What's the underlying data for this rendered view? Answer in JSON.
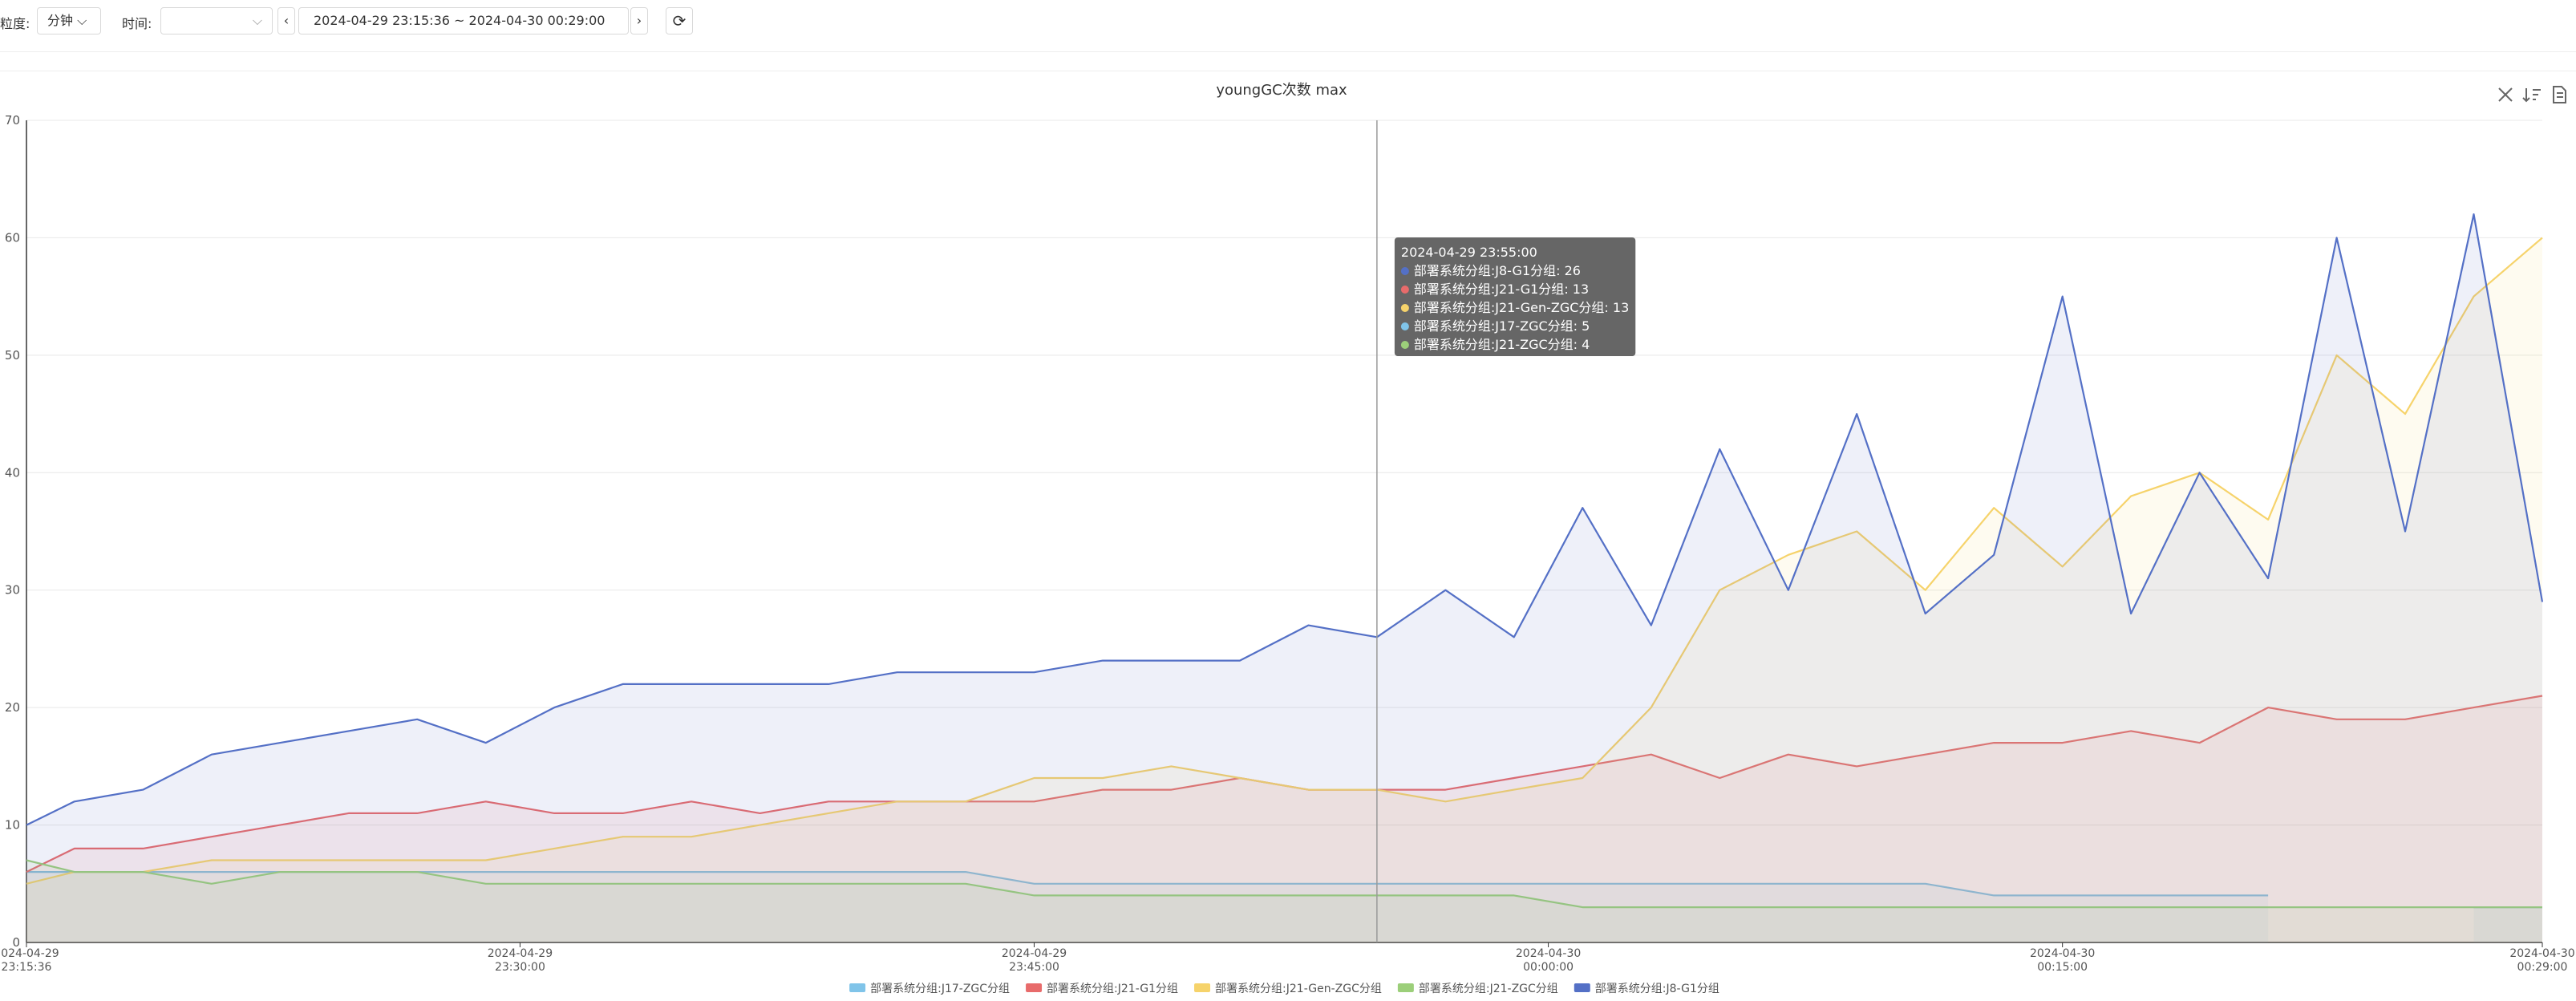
{
  "toolbar": {
    "granularity_label": "粒度:",
    "granularity": "分钟",
    "time_label": "时间:",
    "range": "2024-04-29 23:15:36 ~ 2024-04-30 00:29:00"
  },
  "chart_data": {
    "type": "line",
    "title": "youngGC次数 max",
    "x": [
      "2024-04-29 23:15:36",
      "2024-04-29 23:17:00",
      "2024-04-29 23:19:00",
      "2024-04-29 23:21:00",
      "2024-04-29 23:23:00",
      "2024-04-29 23:25:00",
      "2024-04-29 23:27:00",
      "2024-04-29 23:29:00",
      "2024-04-29 23:31:00",
      "2024-04-29 23:33:00",
      "2024-04-29 23:35:00",
      "2024-04-29 23:37:00",
      "2024-04-29 23:39:00",
      "2024-04-29 23:41:00",
      "2024-04-29 23:43:00",
      "2024-04-29 23:45:00",
      "2024-04-29 23:47:00",
      "2024-04-29 23:49:00",
      "2024-04-29 23:51:00",
      "2024-04-29 23:53:00",
      "2024-04-29 23:55:00",
      "2024-04-29 23:57:00",
      "2024-04-29 23:59:00",
      "2024-04-30 00:01:00",
      "2024-04-30 00:03:00",
      "2024-04-30 00:05:00",
      "2024-04-30 00:07:00",
      "2024-04-30 00:09:00",
      "2024-04-30 00:11:00",
      "2024-04-30 00:13:00",
      "2024-04-30 00:15:00",
      "2024-04-30 00:17:00",
      "2024-04-30 00:19:00",
      "2024-04-30 00:21:00",
      "2024-04-30 00:23:00",
      "2024-04-30 00:25:00",
      "2024-04-30 00:27:00",
      "2024-04-30 00:29:00"
    ],
    "series": [
      {
        "name": "部署系统分组:J17-ZGC分组",
        "color": "#80c4e9",
        "values": [
          6,
          6,
          6,
          6,
          6,
          6,
          6,
          6,
          6,
          6,
          6,
          6,
          6,
          6,
          6,
          5,
          5,
          5,
          5,
          5,
          5,
          5,
          5,
          5,
          5,
          5,
          5,
          5,
          5,
          4,
          4,
          4,
          4,
          4,
          null,
          null,
          3,
          3
        ]
      },
      {
        "name": "部署系统分组:J21-G1分组",
        "color": "#e86b6b",
        "values": [
          6,
          8,
          8,
          9,
          10,
          11,
          11,
          12,
          11,
          11,
          12,
          11,
          12,
          12,
          12,
          12,
          13,
          13,
          14,
          13,
          13,
          13,
          14,
          15,
          16,
          14,
          16,
          15,
          16,
          17,
          17,
          18,
          17,
          20,
          19,
          19,
          20,
          21
        ]
      },
      {
        "name": "部署系统分组:J21-Gen-ZGC分组",
        "color": "#f6d36b",
        "values": [
          5,
          6,
          6,
          7,
          7,
          7,
          7,
          7,
          8,
          9,
          9,
          10,
          11,
          12,
          12,
          14,
          14,
          15,
          14,
          13,
          13,
          12,
          13,
          14,
          20,
          30,
          33,
          35,
          30,
          37,
          32,
          38,
          40,
          36,
          50,
          45,
          55,
          60
        ]
      },
      {
        "name": "部署系统分组:J21-ZGC分组",
        "color": "#9ccf7a",
        "values": [
          7,
          6,
          6,
          5,
          6,
          6,
          6,
          5,
          5,
          5,
          5,
          5,
          5,
          5,
          5,
          4,
          4,
          4,
          4,
          4,
          4,
          4,
          4,
          3,
          3,
          3,
          3,
          3,
          3,
          3,
          3,
          3,
          3,
          3,
          3,
          3,
          3,
          3
        ]
      },
      {
        "name": "部署系统分组:J8-G1分组",
        "color": "#5470c6",
        "values": [
          10,
          12,
          13,
          16,
          17,
          18,
          19,
          17,
          20,
          22,
          22,
          22,
          22,
          23,
          23,
          23,
          24,
          24,
          24,
          27,
          26,
          30,
          26,
          37,
          27,
          42,
          30,
          45,
          28,
          33,
          55,
          28,
          40,
          31,
          60,
          35,
          62,
          29
        ]
      }
    ],
    "xticks": [
      {
        "value": "2024-04-29 23:15:36",
        "label": "2024-04-29\n23:15:36"
      },
      {
        "value": "2024-04-29 23:30:00",
        "label": "2024-04-29\n23:30:00"
      },
      {
        "value": "2024-04-29 23:45:00",
        "label": "2024-04-29\n23:45:00"
      },
      {
        "value": "2024-04-30 00:00:00",
        "label": "2024-04-30\n00:00:00"
      },
      {
        "value": "2024-04-30 00:15:00",
        "label": "2024-04-30\n00:15:00"
      },
      {
        "value": "2024-04-30 00:29:00",
        "label": "2024-04-30\n00:29:00"
      }
    ],
    "ylim": [
      0,
      70
    ],
    "yticks": [
      0,
      10,
      20,
      30,
      40,
      50,
      60,
      70
    ],
    "grid": true,
    "legend": "bottom",
    "tooltip": {
      "title": "2024-04-29 23:55:00"
    }
  }
}
